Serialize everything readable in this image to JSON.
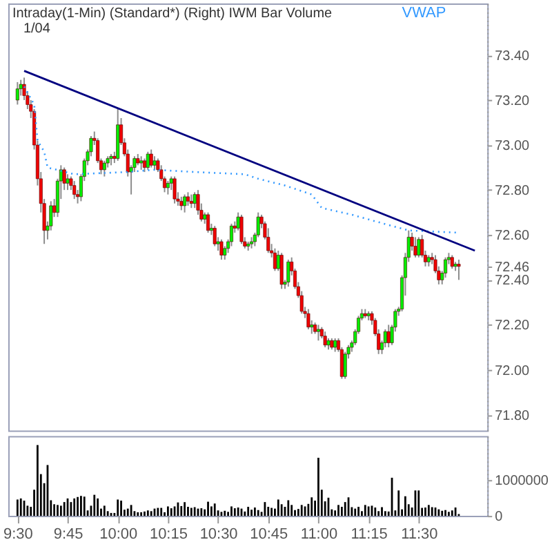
{
  "chart_data": [
    {
      "type": "candlestick",
      "title": "Intraday(1-Min)  (Standard*)   (Right)   IWM   Bar   Volume",
      "subtitle": "1/04",
      "x": [
        9.5,
        9.5167,
        9.5333,
        9.55,
        9.5667,
        9.5833,
        9.6,
        9.6167,
        9.6333,
        9.65,
        9.6667,
        9.6833,
        9.7,
        9.7167,
        9.7333,
        9.75,
        9.7667,
        9.7833,
        9.8,
        9.8167,
        9.8333,
        9.85,
        9.8667,
        9.8833,
        9.9,
        9.9167,
        9.9333,
        9.95,
        9.9667,
        9.9833,
        10,
        10.0167,
        10.0333,
        10.05,
        10.0667,
        10.0833,
        10.1,
        10.1167,
        10.1333,
        10.15,
        10.1667,
        10.1833,
        10.2,
        10.2167,
        10.2333,
        10.25,
        10.2667,
        10.2833,
        10.3,
        10.3167,
        10.3333,
        10.35,
        10.3667,
        10.3833,
        10.4,
        10.4167,
        10.4333,
        10.45,
        10.4667,
        10.4833,
        10.5,
        10.5167,
        10.5333,
        10.55,
        10.5667,
        10.5833,
        10.6,
        10.6167,
        10.6333,
        10.65,
        10.6667,
        10.6833,
        10.7,
        10.7167,
        10.7333,
        10.75,
        10.7667,
        10.7833,
        10.8,
        10.8167,
        10.8333,
        10.85,
        10.8667,
        10.8833,
        10.9,
        10.9167,
        10.9333,
        10.95,
        10.9667,
        10.9833,
        11,
        11.0167,
        11.0333,
        11.05,
        11.0667,
        11.0833,
        11.1,
        11.1167,
        11.1333,
        11.15,
        11.1667,
        11.1833,
        11.2,
        11.2167,
        11.2333,
        11.25,
        11.2667,
        11.2833,
        11.3,
        11.3167,
        11.3333,
        11.35,
        11.3667,
        11.3833,
        11.4,
        11.4167,
        11.4333,
        11.45,
        11.4667,
        11.4833,
        11.5,
        11.5167,
        11.5333,
        11.55,
        11.5667,
        11.5833,
        11.6,
        11.6167,
        11.6333,
        11.65,
        11.6667,
        11.6833,
        11.7
      ],
      "ohlc": [
        [
          73.2,
          73.28,
          73.18,
          73.25
        ],
        [
          73.25,
          73.29,
          73.22,
          73.27
        ],
        [
          73.27,
          73.3,
          73.2,
          73.22
        ],
        [
          73.22,
          73.24,
          73.16,
          73.18
        ],
        [
          73.18,
          73.2,
          73.12,
          73.15
        ],
        [
          73.15,
          73.16,
          72.98,
          73.0
        ],
        [
          73.0,
          73.02,
          72.82,
          72.85
        ],
        [
          72.85,
          72.88,
          72.7,
          72.74
        ],
        [
          72.74,
          72.76,
          72.56,
          72.62
        ],
        [
          72.62,
          72.66,
          72.58,
          72.64
        ],
        [
          72.64,
          72.75,
          72.62,
          72.73
        ],
        [
          72.73,
          72.76,
          72.68,
          72.7
        ],
        [
          72.7,
          72.85,
          72.68,
          72.84
        ],
        [
          72.84,
          72.91,
          72.76,
          72.89
        ],
        [
          72.89,
          72.9,
          72.8,
          72.83
        ],
        [
          72.83,
          72.87,
          72.8,
          72.85
        ],
        [
          72.85,
          72.86,
          72.8,
          72.82
        ],
        [
          72.82,
          72.84,
          72.76,
          72.78
        ],
        [
          72.78,
          72.8,
          72.74,
          72.77
        ],
        [
          72.77,
          72.87,
          72.75,
          72.86
        ],
        [
          72.86,
          72.94,
          72.84,
          72.93
        ],
        [
          72.93,
          72.98,
          72.91,
          72.97
        ],
        [
          72.97,
          73.04,
          72.95,
          73.03
        ],
        [
          73.03,
          73.06,
          73.0,
          73.02
        ],
        [
          73.02,
          73.03,
          72.92,
          72.93
        ],
        [
          72.93,
          72.94,
          72.87,
          72.89
        ],
        [
          72.89,
          72.93,
          72.86,
          72.92
        ],
        [
          72.92,
          72.95,
          72.9,
          72.94
        ],
        [
          72.94,
          72.96,
          72.91,
          72.95
        ],
        [
          72.95,
          72.97,
          72.92,
          72.94
        ],
        [
          72.94,
          73.16,
          72.93,
          73.09
        ],
        [
          73.09,
          73.12,
          73.0,
          73.01
        ],
        [
          73.01,
          73.03,
          72.95,
          72.96
        ],
        [
          72.96,
          72.98,
          72.86,
          72.88
        ],
        [
          72.88,
          72.91,
          72.78,
          72.9
        ],
        [
          72.9,
          72.95,
          72.88,
          72.94
        ],
        [
          72.94,
          72.96,
          72.91,
          72.92
        ],
        [
          72.92,
          72.95,
          72.89,
          72.93
        ],
        [
          72.93,
          72.94,
          72.88,
          72.9
        ],
        [
          72.9,
          72.97,
          72.89,
          72.96
        ],
        [
          72.96,
          72.98,
          72.9,
          72.91
        ],
        [
          72.91,
          72.95,
          72.89,
          72.93
        ],
        [
          72.93,
          72.94,
          72.88,
          72.89
        ],
        [
          72.89,
          72.91,
          72.84,
          72.85
        ],
        [
          72.85,
          72.86,
          72.79,
          72.81
        ],
        [
          72.81,
          72.84,
          72.78,
          72.83
        ],
        [
          72.83,
          72.86,
          72.8,
          72.85
        ],
        [
          72.85,
          72.86,
          72.74,
          72.76
        ],
        [
          72.76,
          72.79,
          72.73,
          72.75
        ],
        [
          72.75,
          72.77,
          72.71,
          72.73
        ],
        [
          72.73,
          72.78,
          72.7,
          72.77
        ],
        [
          72.77,
          72.79,
          72.73,
          72.75
        ],
        [
          72.75,
          72.78,
          72.72,
          72.74
        ],
        [
          72.74,
          72.79,
          72.72,
          72.78
        ],
        [
          72.78,
          72.8,
          72.69,
          72.71
        ],
        [
          72.71,
          72.74,
          72.66,
          72.67
        ],
        [
          72.67,
          72.7,
          72.65,
          72.69
        ],
        [
          72.69,
          72.7,
          72.61,
          72.62
        ],
        [
          72.62,
          72.65,
          72.6,
          72.63
        ],
        [
          72.63,
          72.64,
          72.55,
          72.56
        ],
        [
          72.56,
          72.59,
          72.53,
          72.57
        ],
        [
          72.57,
          72.58,
          72.49,
          72.51
        ],
        [
          72.51,
          72.55,
          72.49,
          72.54
        ],
        [
          72.54,
          72.58,
          72.52,
          72.57
        ],
        [
          72.57,
          72.65,
          72.55,
          72.64
        ],
        [
          72.64,
          72.66,
          72.61,
          72.63
        ],
        [
          72.63,
          72.7,
          72.62,
          72.68
        ],
        [
          72.68,
          72.69,
          72.56,
          72.57
        ],
        [
          72.57,
          72.59,
          72.54,
          72.55
        ],
        [
          72.55,
          72.57,
          72.53,
          72.56
        ],
        [
          72.56,
          72.59,
          72.54,
          72.57
        ],
        [
          72.57,
          72.61,
          72.55,
          72.6
        ],
        [
          72.6,
          72.7,
          72.59,
          72.68
        ],
        [
          72.68,
          72.69,
          72.63,
          72.65
        ],
        [
          72.65,
          72.66,
          72.58,
          72.59
        ],
        [
          72.59,
          72.63,
          72.52,
          72.53
        ],
        [
          72.53,
          72.56,
          72.5,
          72.52
        ],
        [
          72.52,
          72.54,
          72.44,
          72.45
        ],
        [
          72.45,
          72.53,
          72.44,
          72.51
        ],
        [
          72.51,
          72.52,
          72.36,
          72.38
        ],
        [
          72.38,
          72.4,
          72.36,
          72.39
        ],
        [
          72.39,
          72.49,
          72.37,
          72.48
        ],
        [
          72.48,
          72.5,
          72.42,
          72.44
        ],
        [
          72.44,
          72.45,
          72.36,
          72.37
        ],
        [
          72.37,
          72.39,
          72.32,
          72.33
        ],
        [
          72.33,
          72.35,
          72.25,
          72.26
        ],
        [
          72.26,
          72.28,
          72.23,
          72.25
        ],
        [
          72.25,
          72.27,
          72.18,
          72.19
        ],
        [
          72.19,
          72.22,
          72.16,
          72.2
        ],
        [
          72.2,
          72.21,
          72.16,
          72.17
        ],
        [
          72.17,
          72.2,
          72.13,
          72.18
        ],
        [
          72.18,
          72.19,
          72.14,
          72.15
        ],
        [
          72.15,
          72.17,
          72.1,
          72.11
        ],
        [
          72.11,
          72.14,
          72.09,
          72.13
        ],
        [
          72.13,
          72.14,
          72.09,
          72.1
        ],
        [
          72.1,
          72.14,
          72.08,
          72.13
        ],
        [
          72.13,
          72.14,
          72.08,
          72.09
        ],
        [
          72.09,
          72.1,
          71.96,
          71.97
        ],
        [
          71.97,
          72.08,
          71.96,
          72.07
        ],
        [
          72.07,
          72.11,
          72.05,
          72.1
        ],
        [
          72.1,
          72.13,
          72.08,
          72.12
        ],
        [
          72.12,
          72.18,
          72.11,
          72.17
        ],
        [
          72.17,
          72.24,
          72.16,
          72.23
        ],
        [
          72.23,
          72.27,
          72.22,
          72.25
        ],
        [
          72.25,
          72.27,
          72.23,
          72.24
        ],
        [
          72.24,
          72.26,
          72.22,
          72.25
        ],
        [
          72.25,
          72.26,
          72.2,
          72.22
        ],
        [
          72.22,
          72.23,
          72.15,
          72.16
        ],
        [
          72.16,
          72.18,
          72.07,
          72.09
        ],
        [
          72.09,
          72.13,
          72.07,
          72.12
        ],
        [
          72.12,
          72.18,
          72.1,
          72.17
        ],
        [
          72.17,
          72.2,
          72.1,
          72.12
        ],
        [
          72.12,
          72.2,
          72.11,
          72.19
        ],
        [
          72.19,
          72.27,
          72.17,
          72.26
        ],
        [
          72.26,
          72.28,
          72.24,
          72.27
        ],
        [
          72.27,
          72.42,
          72.26,
          72.41
        ],
        [
          72.41,
          72.52,
          72.33,
          72.5
        ],
        [
          72.5,
          72.62,
          72.48,
          72.59
        ],
        [
          72.59,
          72.61,
          72.53,
          72.55
        ],
        [
          72.55,
          72.59,
          72.5,
          72.51
        ],
        [
          72.51,
          72.59,
          72.5,
          72.58
        ],
        [
          72.58,
          72.6,
          72.5,
          72.51
        ],
        [
          72.51,
          72.53,
          72.46,
          72.48
        ],
        [
          72.48,
          72.51,
          72.46,
          72.5
        ],
        [
          72.5,
          72.52,
          72.47,
          72.49
        ],
        [
          72.49,
          72.51,
          72.43,
          72.44
        ],
        [
          72.44,
          72.46,
          72.38,
          72.4
        ],
        [
          72.4,
          72.44,
          72.38,
          72.43
        ],
        [
          72.43,
          72.5,
          72.41,
          72.49
        ],
        [
          72.49,
          72.52,
          72.47,
          72.5
        ],
        [
          72.5,
          72.51,
          72.45,
          72.46
        ],
        [
          72.46,
          72.48,
          72.44,
          72.47
        ],
        [
          72.47,
          72.49,
          72.4,
          72.46
        ]
      ],
      "series": [
        {
          "name": "VWAP",
          "type": "line",
          "line_style": "dotted",
          "color": "#3399ff",
          "x": [
            9.5333,
            9.5833,
            9.6,
            9.6333,
            9.65,
            9.7833,
            10.05,
            10.1833,
            10.3833,
            10.6333,
            10.7,
            10.8333,
            10.9667,
            11.0167,
            11.1667,
            11.3667,
            11.45,
            11.7
          ],
          "values": [
            73.26,
            73.18,
            73.02,
            72.97,
            72.9,
            72.87,
            72.88,
            72.89,
            72.88,
            72.87,
            72.85,
            72.82,
            72.78,
            72.72,
            72.69,
            72.64,
            72.62,
            72.61
          ]
        },
        {
          "type": "line",
          "line_style": "solid",
          "color": "#000080",
          "x": [
            9.5333,
            11.78
          ],
          "values": [
            73.33,
            72.53
          ]
        }
      ],
      "xlim": [
        9.454,
        11.842
      ],
      "ylim": [
        71.73,
        73.63
      ],
      "yticks": [
        {
          "value": 71.8,
          "label": "71.80"
        },
        {
          "value": 72.0,
          "label": "72.00"
        },
        {
          "value": 72.2,
          "label": "72.20"
        },
        {
          "value": 72.4,
          "label": "72.40"
        },
        72.46,
        {
          "value": 72.6,
          "label": "72.60"
        },
        {
          "value": 72.8,
          "label": "72.80"
        },
        {
          "value": 73.0,
          "label": "73.00"
        },
        {
          "value": 73.2,
          "label": "73.20"
        },
        {
          "value": 73.4,
          "label": "73.40"
        }
      ],
      "tick_labels": "y",
      "grid": false
    },
    {
      "type": "bar",
      "color": "#000000",
      "x": [
        9.5,
        9.5167,
        9.5333,
        9.55,
        9.5667,
        9.5833,
        9.6,
        9.6167,
        9.6333,
        9.65,
        9.6667,
        9.6833,
        9.7,
        9.7167,
        9.7333,
        9.75,
        9.7667,
        9.7833,
        9.8,
        9.8167,
        9.8333,
        9.85,
        9.8667,
        9.8833,
        9.9,
        9.9167,
        9.9333,
        9.95,
        9.9667,
        9.9833,
        10,
        10.0167,
        10.0333,
        10.05,
        10.0667,
        10.0833,
        10.1,
        10.1167,
        10.1333,
        10.15,
        10.1667,
        10.1833,
        10.2,
        10.2167,
        10.2333,
        10.25,
        10.2667,
        10.2833,
        10.3,
        10.3167,
        10.3333,
        10.35,
        10.3667,
        10.3833,
        10.4,
        10.4167,
        10.4333,
        10.45,
        10.4667,
        10.4833,
        10.5,
        10.5167,
        10.5333,
        10.55,
        10.5667,
        10.5833,
        10.6,
        10.6167,
        10.6333,
        10.65,
        10.6667,
        10.6833,
        10.7,
        10.7167,
        10.7333,
        10.75,
        10.7667,
        10.7833,
        10.8,
        10.8167,
        10.8333,
        10.85,
        10.8667,
        10.8833,
        10.9,
        10.9167,
        10.9333,
        10.95,
        10.9667,
        10.9833,
        11,
        11.0167,
        11.0333,
        11.05,
        11.0667,
        11.0833,
        11.1,
        11.1167,
        11.1333,
        11.15,
        11.1667,
        11.1833,
        11.2,
        11.2167,
        11.2333,
        11.25,
        11.2667,
        11.2833,
        11.3,
        11.3167,
        11.3333,
        11.35,
        11.3667,
        11.3833,
        11.4,
        11.4167,
        11.4333,
        11.45,
        11.4667,
        11.4833,
        11.5,
        11.5167,
        11.5333,
        11.55,
        11.5667,
        11.5833,
        11.6,
        11.6167,
        11.6333,
        11.65,
        11.6667,
        11.6833,
        11.7
      ],
      "values": [
        450000,
        480000,
        420000,
        280000,
        250000,
        720000,
        1950000,
        1150000,
        900000,
        1400000,
        430000,
        320000,
        300000,
        280000,
        380000,
        480000,
        380000,
        480000,
        520000,
        550000,
        530000,
        150000,
        280000,
        580000,
        480000,
        200000,
        280000,
        130000,
        80000,
        80000,
        450000,
        420000,
        170000,
        200000,
        300000,
        130000,
        100000,
        100000,
        120000,
        150000,
        130000,
        200000,
        220000,
        220000,
        100000,
        260000,
        210000,
        260000,
        370000,
        270000,
        380000,
        250000,
        220000,
        240000,
        200000,
        210000,
        180000,
        390000,
        260000,
        340000,
        150000,
        110000,
        140000,
        110000,
        260000,
        210000,
        230000,
        200000,
        120000,
        250000,
        170000,
        230000,
        160000,
        110000,
        380000,
        250000,
        220000,
        200000,
        450000,
        320000,
        250000,
        430000,
        300000,
        160000,
        190000,
        300000,
        260000,
        330000,
        510000,
        420000,
        1600000,
        720000,
        400000,
        500000,
        180000,
        150000,
        300000,
        250000,
        380000,
        510000,
        240000,
        200000,
        250000,
        130000,
        300000,
        260000,
        280000,
        230000,
        130000,
        240000,
        130000,
        120000,
        1050000,
        150000,
        700000,
        180000,
        540000,
        320000,
        230000,
        700000,
        700000,
        220000,
        230000,
        300000,
        240000,
        230000,
        180000,
        140000,
        160000,
        110000,
        150000,
        230000,
        50000
      ],
      "xlim": [
        9.454,
        11.842
      ],
      "ylim": [
        0,
        2200000
      ],
      "yticks": [
        0,
        1000000
      ],
      "xticks": [
        {
          "value": 9.5,
          "label": "9:30"
        },
        {
          "value": 9.75,
          "label": "9:45"
        },
        {
          "value": 10,
          "label": "10:00"
        },
        {
          "value": 10.25,
          "label": "10:15"
        },
        {
          "value": 10.5,
          "label": "10:30"
        },
        {
          "value": 10.75,
          "label": "10:45"
        },
        {
          "value": 11,
          "label": "11:00"
        },
        {
          "value": 11.25,
          "label": "11:15"
        },
        {
          "value": 11.5,
          "label": "11:30"
        }
      ],
      "grid": false
    }
  ]
}
